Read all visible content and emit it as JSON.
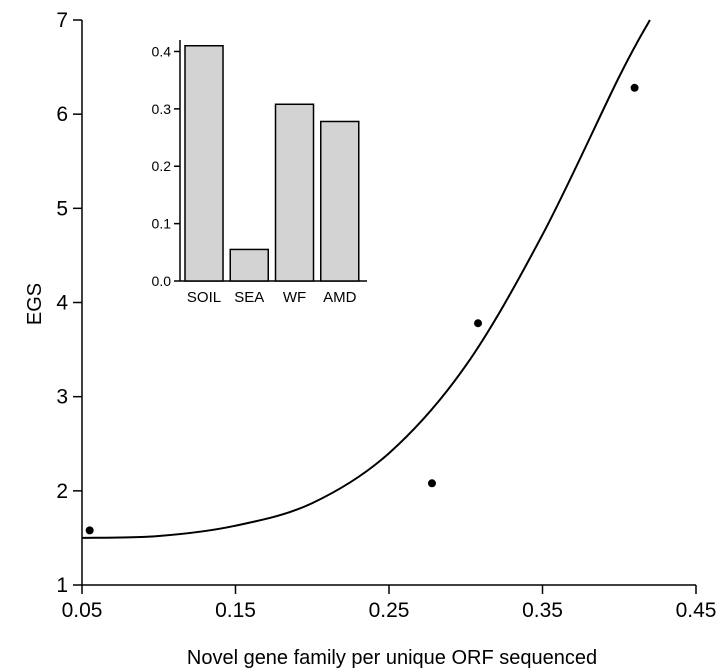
{
  "chart_data": [
    {
      "type": "scatter",
      "xlabel": "Novel gene family per unique ORF sequenced",
      "ylabel": "EGS",
      "xlim": [
        0.05,
        0.45
      ],
      "ylim": [
        1,
        7
      ],
      "xticks": [
        "0.05",
        "0.15",
        "0.25",
        "0.35",
        "0.45"
      ],
      "yticks": [
        "1",
        "2",
        "3",
        "4",
        "5",
        "6",
        "7"
      ],
      "grid": false,
      "points": [
        {
          "x": 0.055,
          "y": 1.58
        },
        {
          "x": 0.278,
          "y": 2.08
        },
        {
          "x": 0.308,
          "y": 3.78
        },
        {
          "x": 0.41,
          "y": 6.28
        }
      ],
      "fit_curve": [
        {
          "x": 0.05,
          "y": 1.5
        },
        {
          "x": 0.1,
          "y": 1.52
        },
        {
          "x": 0.15,
          "y": 1.63
        },
        {
          "x": 0.2,
          "y": 1.87
        },
        {
          "x": 0.25,
          "y": 2.4
        },
        {
          "x": 0.3,
          "y": 3.33
        },
        {
          "x": 0.35,
          "y": 4.72
        },
        {
          "x": 0.4,
          "y": 6.4
        },
        {
          "x": 0.42,
          "y": 7.0
        }
      ]
    },
    {
      "type": "bar",
      "categories": [
        "SOIL",
        "SEA",
        "WF",
        "AMD"
      ],
      "values": [
        0.41,
        0.055,
        0.308,
        0.278
      ],
      "ylim": [
        0,
        0.42
      ],
      "yticks": [
        "0.0",
        "0.1",
        "0.2",
        "0.3",
        "0.4"
      ],
      "bar_color": "#d3d3d3"
    }
  ]
}
